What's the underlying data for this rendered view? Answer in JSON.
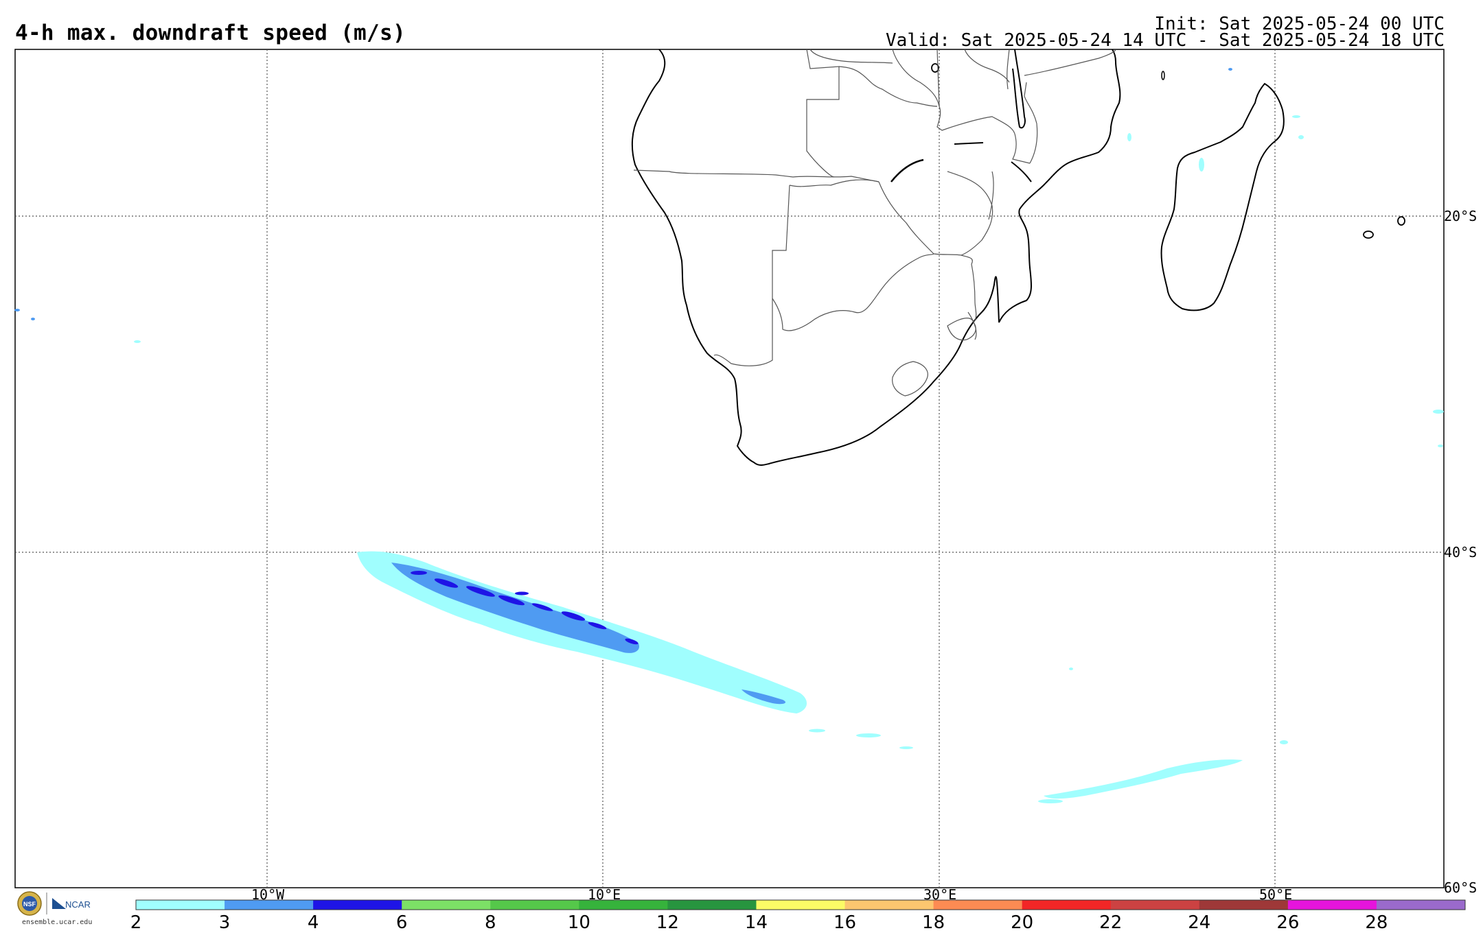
{
  "header": {
    "title": "4-h max. downdraft speed (m/s)",
    "init": "Init: Sat 2025-05-24 00 UTC",
    "valid": "Valid: Sat 2025-05-24 14 UTC - Sat 2025-05-24 18 UTC"
  },
  "map": {
    "longitude_labels": [
      "10°W",
      "10°E",
      "30°E",
      "50°E"
    ],
    "latitude_labels": [
      "20°S",
      "40°S",
      "60°S"
    ],
    "grid": true
  },
  "colorbar": {
    "labels": [
      "2",
      "3",
      "4",
      "6",
      "8",
      "10",
      "12",
      "14",
      "16",
      "18",
      "20",
      "22",
      "24",
      "26",
      "28"
    ],
    "colors": [
      "#a0fefe",
      "#4f9bf2",
      "#1e14e6",
      "#7ce066",
      "#55c84a",
      "#36b33c",
      "#27953f",
      "#fcfb66",
      "#fcc66f",
      "#fc8b53",
      "#f22626",
      "#cc4242",
      "#9e3838",
      "#e614dc",
      "#9a6acc"
    ]
  },
  "logo": {
    "nsf": "NSF",
    "ncar": "NCAR",
    "url": "ensemble.ucar.edu"
  }
}
